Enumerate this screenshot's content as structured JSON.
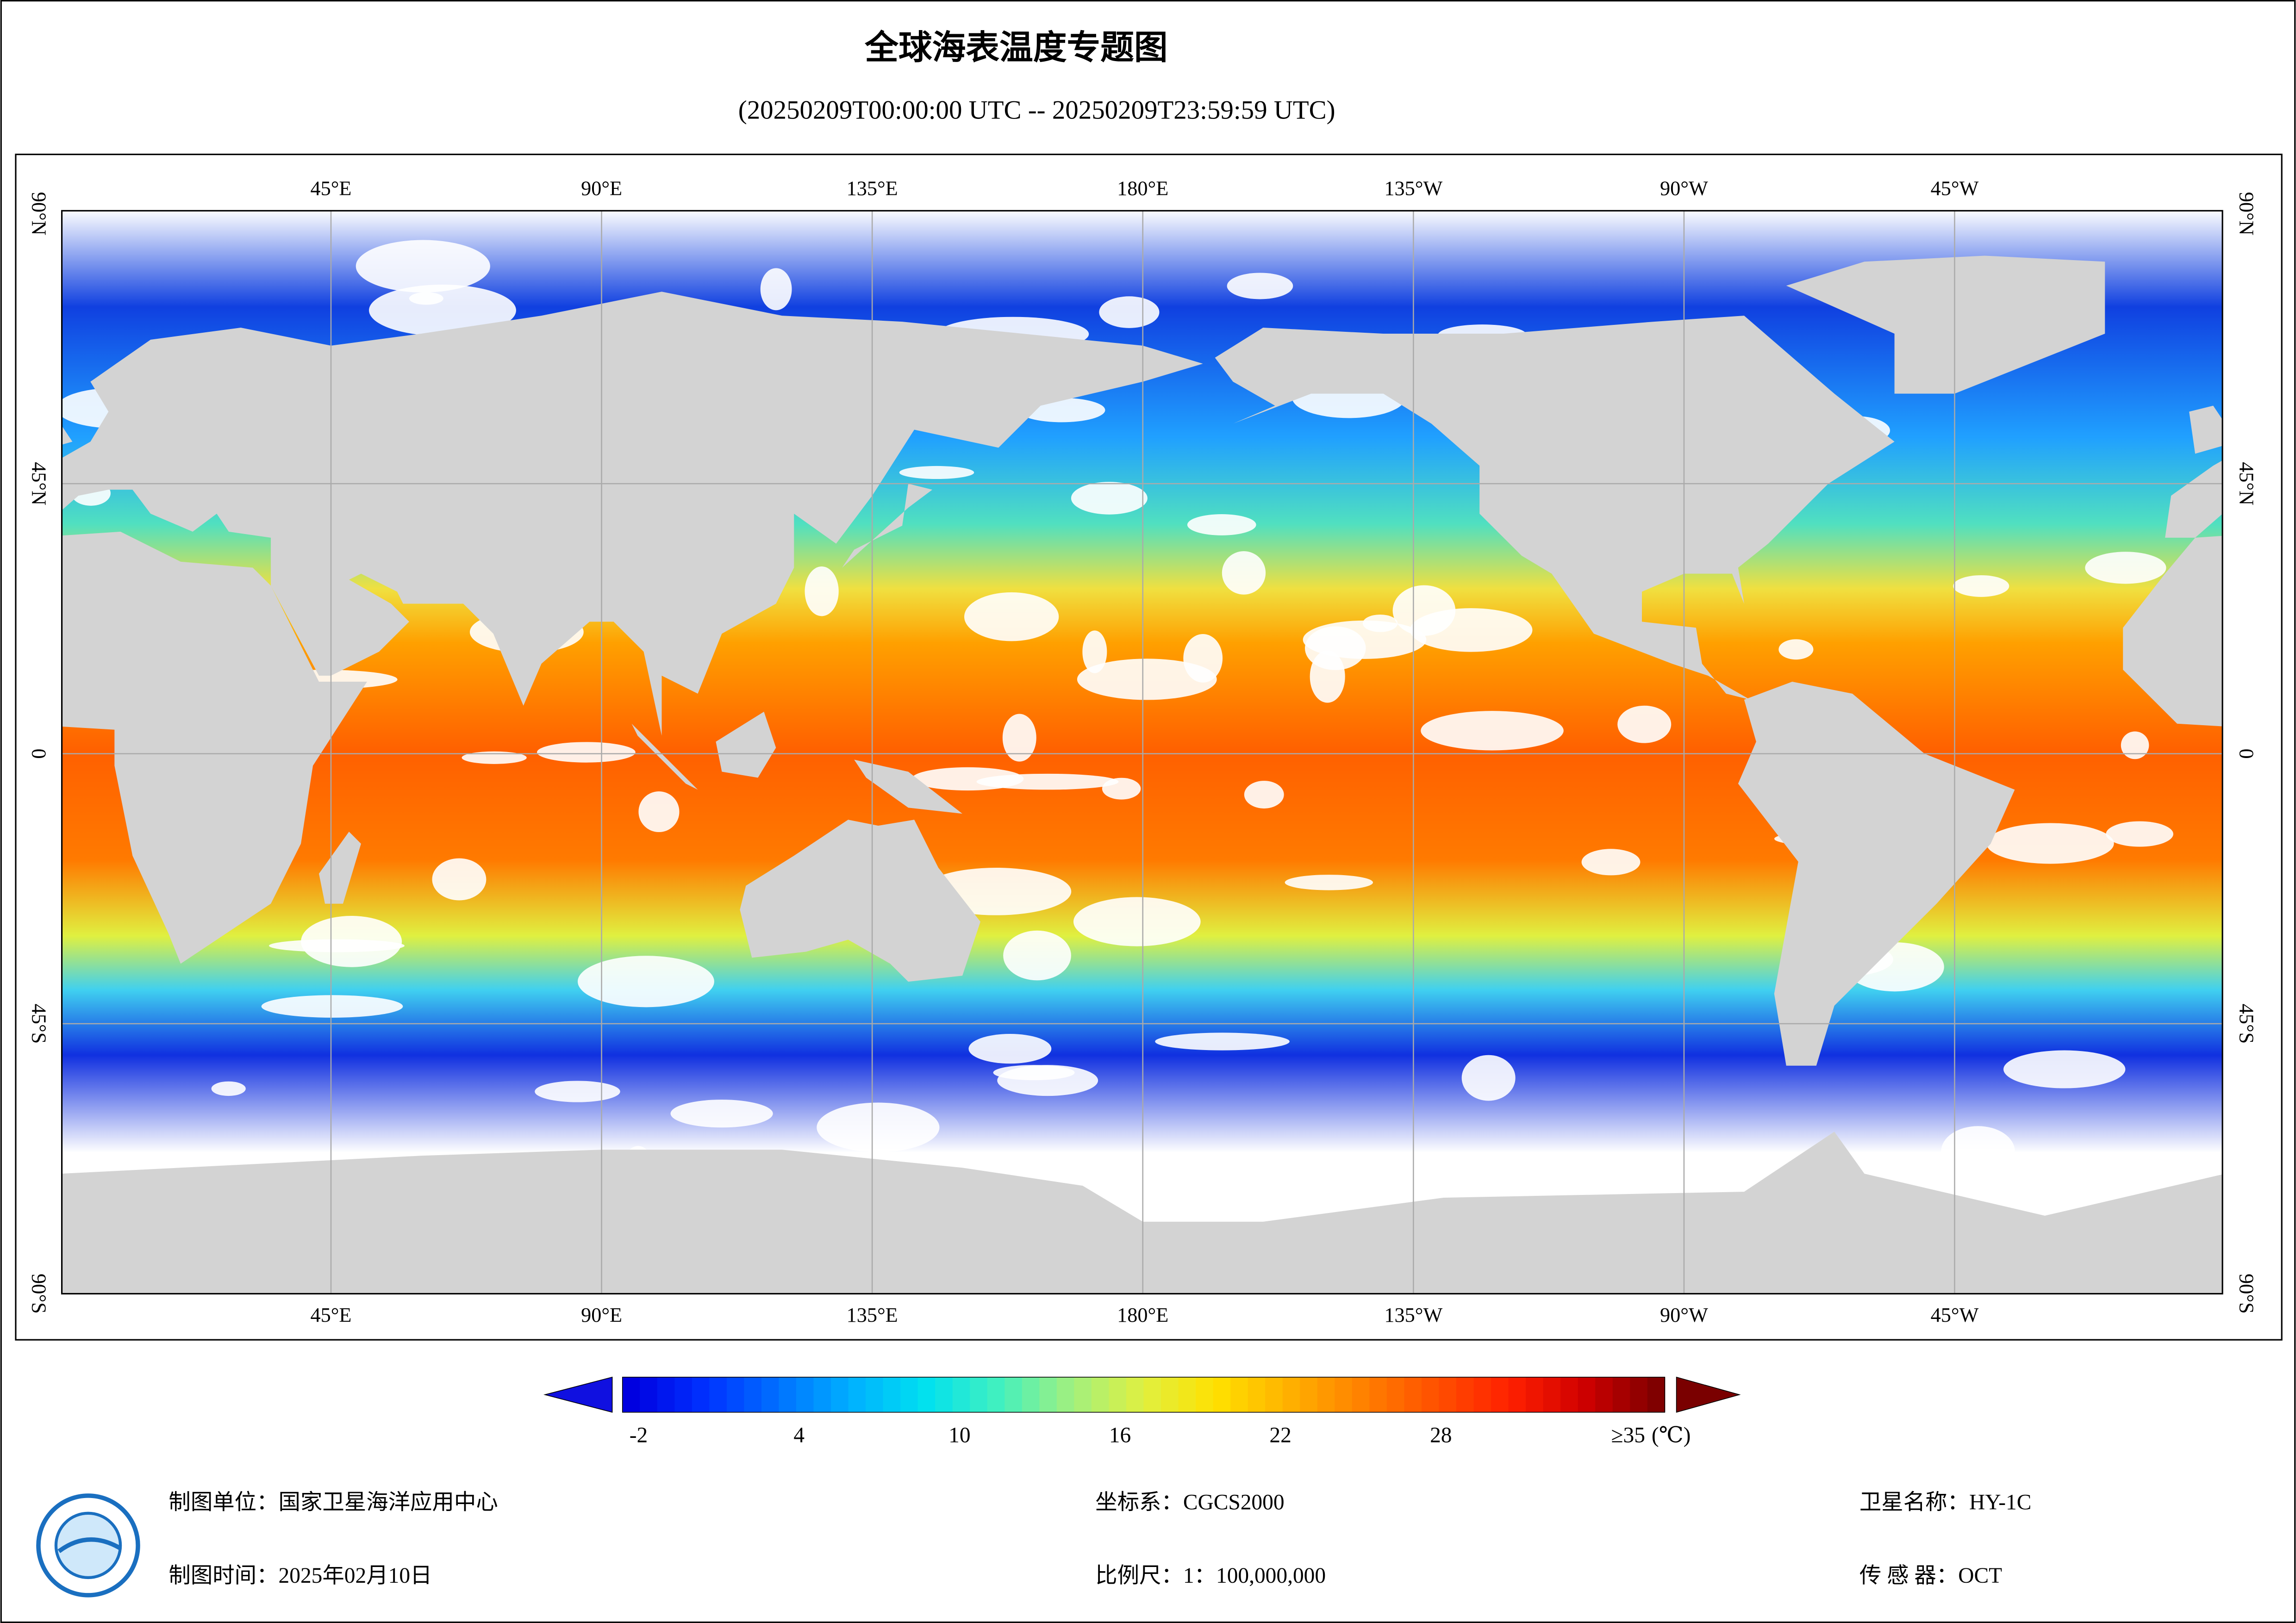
{
  "header": {
    "title": "全球海表温度专题图",
    "subtitle": "(20250209T00:00:00 UTC -- 20250209T23:59:59 UTC)"
  },
  "map": {
    "lon_labels": [
      "45°E",
      "90°E",
      "135°E",
      "180°E",
      "135°W",
      "90°W",
      "45°W"
    ],
    "lat_labels": [
      "90°N",
      "45°N",
      "0",
      "45°S",
      "90°S"
    ]
  },
  "colorbar": {
    "ticks": [
      -2,
      4,
      10,
      16,
      22,
      28,
      {
        "value": 35,
        "label": "≥35"
      }
    ],
    "unit": "(℃)"
  },
  "footer": {
    "unit": "制图单位：国家卫星海洋应用中心",
    "date": "制图时间：2025年02月10日",
    "crs": "坐标系：CGCS2000",
    "scale": "比例尺：1：100,000,000",
    "satellite": "卫星名称：HY-1C",
    "sensor": "传 感 器：OCT"
  }
}
